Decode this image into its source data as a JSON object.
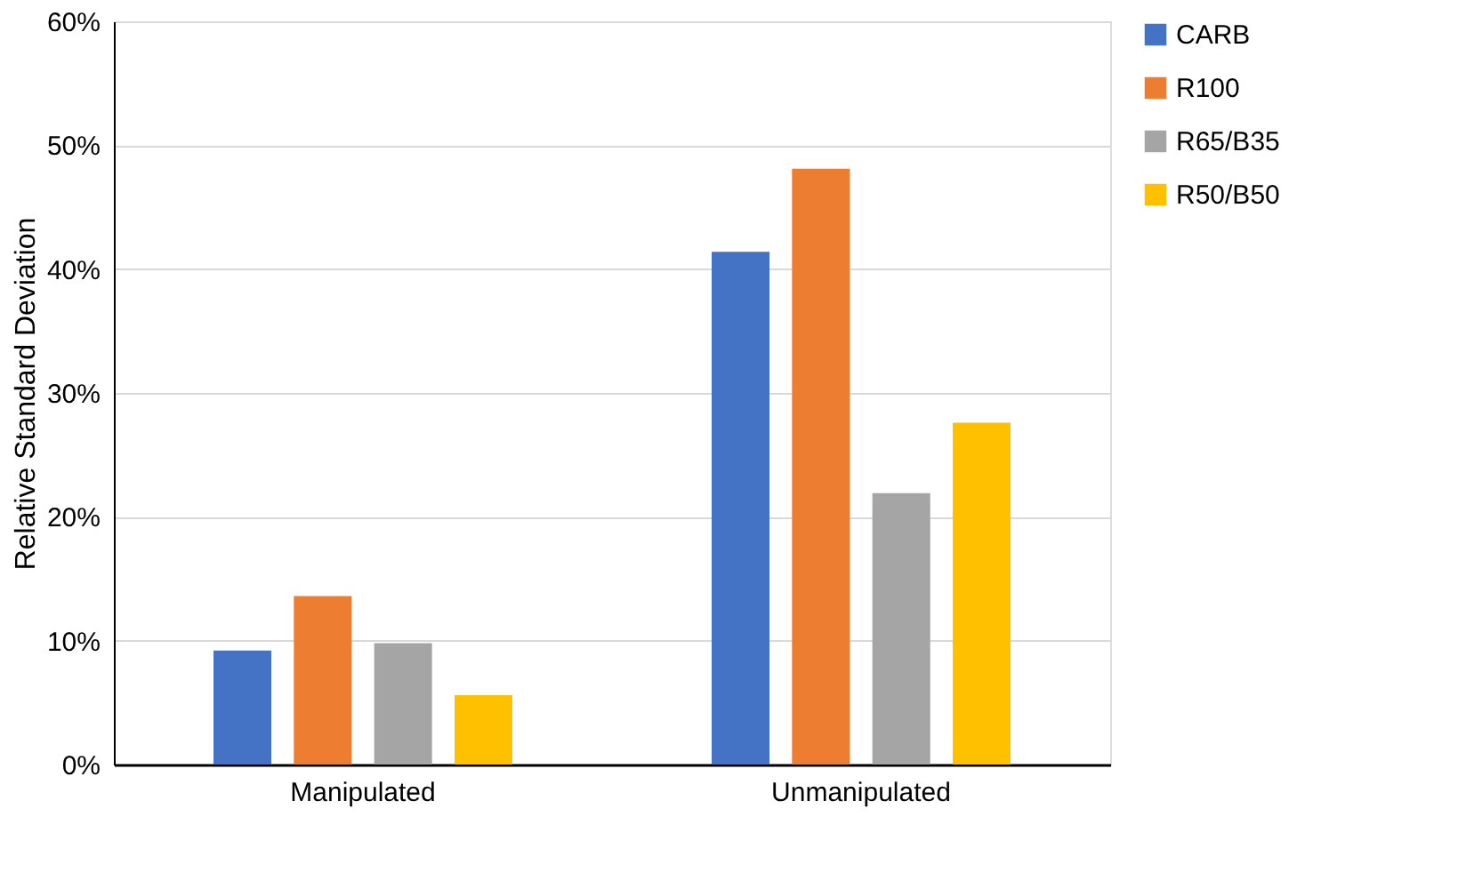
{
  "chart_data": {
    "type": "bar",
    "ylabel": "Relative Standard Deviation",
    "categories": [
      "Manipulated",
      "Unmanipulated"
    ],
    "series": [
      {
        "name": "CARB",
        "color": "#4472c4",
        "values": [
          9.2,
          41.4
        ]
      },
      {
        "name": "R100",
        "color": "#ed7d31",
        "values": [
          13.6,
          48.1
        ]
      },
      {
        "name": "R65/B35",
        "color": "#a5a5a5",
        "values": [
          9.8,
          21.9
        ]
      },
      {
        "name": "R50/B50",
        "color": "#ffc000",
        "values": [
          5.6,
          27.6
        ]
      }
    ],
    "ylim": [
      0,
      60
    ],
    "yticks": [
      {
        "value": 0,
        "label": "0%"
      },
      {
        "value": 10,
        "label": "10%"
      },
      {
        "value": 20,
        "label": "20%"
      },
      {
        "value": 30,
        "label": "30%"
      },
      {
        "value": 40,
        "label": "40%"
      },
      {
        "value": 50,
        "label": "50%"
      },
      {
        "value": 60,
        "label": "60%"
      }
    ],
    "grid": "y",
    "legend": "right"
  }
}
